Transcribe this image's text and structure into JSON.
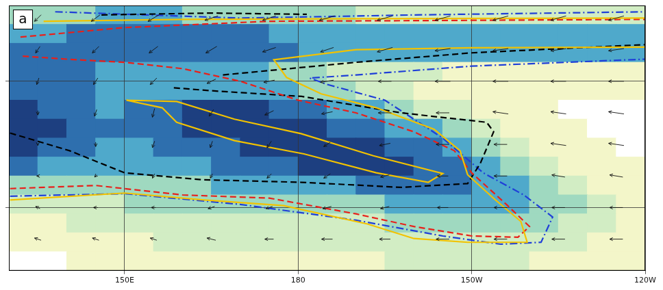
{
  "chart_data": {
    "type": "map",
    "panel": "a",
    "xlim": [
      130,
      240
    ],
    "xticks": [
      {
        "value": 150,
        "label": "150E"
      },
      180,
      {
        "value": 210,
        "label": "150W"
      },
      {
        "value": 240,
        "label": "120W"
      }
    ],
    "ylim": [
      -30,
      12
    ],
    "yticks": [
      -20,
      0
    ],
    "tick_labels": "x",
    "grid": true,
    "cells": {
      "lon": [
        132.5,
        137.5,
        142.5,
        147.5,
        152.5,
        157.5,
        162.5,
        167.5,
        172.5,
        177.5,
        182.5,
        187.5,
        192.5,
        197.5,
        202.5,
        207.5,
        212.5,
        217.5,
        222.5,
        227.5,
        232.5,
        237.5
      ],
      "lat": [
        10.5,
        7.5,
        4.5,
        1.5,
        -1.5,
        -4.5,
        -7.5,
        -10.5,
        -13.5,
        -16.5,
        -19.5,
        -22.5,
        -25.5,
        -28.5
      ],
      "values": [
        [
          7,
          7,
          7,
          8,
          8,
          8,
          7,
          7,
          7,
          6,
          6,
          6,
          5,
          5,
          5,
          5,
          4,
          4,
          4,
          4,
          4,
          4
        ],
        [
          9,
          9,
          10,
          10,
          10,
          10,
          10,
          10,
          10,
          9,
          9,
          9,
          9,
          8,
          8,
          8,
          8,
          8,
          8,
          8,
          8,
          8
        ],
        [
          10,
          10,
          10,
          10,
          10,
          11,
          11,
          10,
          10,
          10,
          9,
          9,
          9,
          9,
          9,
          9,
          9,
          9,
          9,
          9,
          9,
          8
        ],
        [
          10,
          11,
          10,
          9,
          9,
          9,
          9,
          8,
          8,
          7,
          6,
          5,
          5,
          4,
          4,
          3,
          3,
          3,
          3,
          3,
          3,
          3
        ],
        [
          11,
          11,
          10,
          9,
          9,
          9,
          9,
          9,
          8,
          8,
          7,
          6,
          5,
          4,
          3,
          2,
          2,
          2,
          2,
          2,
          2,
          2
        ],
        [
          12,
          11,
          10,
          9,
          10,
          11,
          12,
          12,
          12,
          11,
          10,
          9,
          8,
          7,
          5,
          4,
          3,
          2,
          2,
          1,
          1,
          1
        ],
        [
          13,
          12,
          10,
          10,
          10,
          11,
          12,
          13,
          13,
          13,
          12,
          11,
          10,
          9,
          8,
          6,
          5,
          3,
          2,
          2,
          1,
          1
        ],
        [
          12,
          11,
          10,
          9,
          9,
          10,
          11,
          11,
          12,
          13,
          13,
          13,
          12,
          11,
          10,
          9,
          7,
          5,
          3,
          2,
          2,
          1
        ],
        [
          10,
          9,
          8,
          8,
          8,
          8,
          9,
          10,
          10,
          11,
          12,
          12,
          12,
          12,
          11,
          10,
          9,
          7,
          5,
          3,
          2,
          2
        ],
        [
          7,
          7,
          7,
          7,
          7,
          7,
          7,
          8,
          8,
          8,
          9,
          9,
          10,
          10,
          10,
          10,
          9,
          8,
          7,
          5,
          3,
          2
        ],
        [
          4,
          5,
          5,
          5,
          6,
          6,
          6,
          6,
          6,
          6,
          6,
          7,
          7,
          8,
          8,
          9,
          8,
          8,
          7,
          6,
          4,
          3
        ],
        [
          3,
          3,
          4,
          4,
          4,
          5,
          5,
          5,
          5,
          5,
          5,
          5,
          5,
          6,
          6,
          7,
          7,
          6,
          6,
          5,
          4,
          3
        ],
        [
          2,
          2,
          3,
          3,
          3,
          4,
          4,
          4,
          4,
          4,
          4,
          4,
          4,
          4,
          5,
          5,
          5,
          5,
          4,
          4,
          3,
          3
        ],
        [
          1,
          1,
          2,
          2,
          3,
          3,
          3,
          3,
          3,
          3,
          3,
          3,
          3,
          4,
          4,
          4,
          4,
          4,
          3,
          3,
          3,
          2
        ]
      ]
    },
    "cell_levels": [
      2,
      4,
      6,
      8,
      10,
      12
    ],
    "cell_colors": [
      "#ffffff",
      "#f3f6c9",
      "#d2edc4",
      "#9fd9c0",
      "#4fa9cb",
      "#2e6fae",
      "#1d3f80"
    ],
    "contours": [
      {
        "color": "#f2c200",
        "line_style": "solid",
        "points": [
          [
            150.3,
            -3.0
          ],
          [
            159,
            -3.2
          ],
          [
            169,
            -6.0
          ],
          [
            180.5,
            -8.3
          ],
          [
            193,
            -11.8
          ],
          [
            205,
            -14.6
          ],
          [
            202.5,
            -16.0
          ],
          [
            193.5,
            -14.5
          ],
          [
            181,
            -11.5
          ],
          [
            169,
            -9.4
          ],
          [
            159,
            -6.5
          ],
          [
            156.5,
            -4.2
          ],
          [
            150.3,
            -3.0
          ]
        ]
      },
      {
        "color": "#f2c200",
        "line_style": "solid",
        "points": [
          [
            130.2,
            -18.8
          ],
          [
            150,
            -17.7
          ],
          [
            163.8,
            -18.8
          ],
          [
            177.5,
            -19.7
          ],
          [
            192,
            -22.6
          ],
          [
            200,
            -24.9
          ],
          [
            209.3,
            -25.5
          ],
          [
            219.6,
            -25.5
          ],
          [
            218.5,
            -22.2
          ],
          [
            214,
            -18.7
          ],
          [
            209.3,
            -14.8
          ],
          [
            208,
            -11
          ],
          [
            203.5,
            -7.6
          ],
          [
            193.5,
            -4.2
          ],
          [
            184,
            -2
          ],
          [
            178,
            0.6
          ],
          [
            175.8,
            3.4
          ],
          [
            190,
            5
          ],
          [
            210,
            5.3
          ],
          [
            240,
            5.4
          ]
        ]
      },
      {
        "color": "#f2c200",
        "line_style": "solid",
        "points": [
          [
            136,
            9.5
          ],
          [
            160,
            9.8
          ],
          [
            190,
            9.9
          ],
          [
            240,
            10
          ]
        ]
      },
      {
        "color": "#e8201a",
        "line_style": "dashed",
        "points": [
          [
            130.2,
            -17
          ],
          [
            145,
            -16.5
          ],
          [
            160,
            -18
          ],
          [
            175,
            -18.5
          ],
          [
            190,
            -21
          ],
          [
            200,
            -23
          ],
          [
            210,
            -24.5
          ],
          [
            218,
            -24.7
          ],
          [
            220,
            -23
          ],
          [
            216,
            -19.5
          ],
          [
            213,
            -17
          ],
          [
            210,
            -14.5
          ],
          [
            207,
            -11
          ],
          [
            200,
            -8
          ],
          [
            190,
            -5
          ],
          [
            180,
            -3
          ],
          [
            170,
            0
          ],
          [
            160,
            2
          ],
          [
            150,
            3
          ],
          [
            140,
            3.5
          ],
          [
            132,
            4
          ]
        ]
      },
      {
        "color": "#e8201a",
        "line_style": "dashed",
        "points": [
          [
            132,
            7
          ],
          [
            150,
            8.5
          ],
          [
            175,
            9.5
          ],
          [
            200,
            9.6
          ],
          [
            240,
            9.8
          ]
        ]
      },
      {
        "color": "#000000",
        "line_style": "dashed",
        "points": [
          [
            130.2,
            -8.2
          ],
          [
            140.5,
            -11
          ],
          [
            150,
            -14.5
          ],
          [
            163.5,
            -15.6
          ],
          [
            180.6,
            -16
          ],
          [
            197.8,
            -16.8
          ],
          [
            209.3,
            -16.2
          ],
          [
            211.5,
            -13
          ],
          [
            213.8,
            -8
          ],
          [
            212.6,
            -6.5
          ],
          [
            197.8,
            -5
          ],
          [
            180.6,
            -2.4
          ],
          [
            165,
            -1.5
          ],
          [
            158,
            -1
          ]
        ]
      },
      {
        "color": "#000000",
        "line_style": "dashed",
        "points": [
          [
            146,
            10.5
          ],
          [
            165,
            10.8
          ],
          [
            181.5,
            10.6
          ]
        ]
      },
      {
        "color": "#000000",
        "line_style": "dashed",
        "points": [
          [
            167,
            1
          ],
          [
            190,
            3
          ],
          [
            210,
            4.5
          ],
          [
            240,
            5.8
          ]
        ]
      },
      {
        "color": "#1f3fd8",
        "line_style": "dashdot",
        "points": [
          [
            130.2,
            -18.2
          ],
          [
            150,
            -17.8
          ],
          [
            170,
            -19.5
          ],
          [
            190,
            -22
          ],
          [
            205,
            -24.5
          ],
          [
            215,
            -25.8
          ],
          [
            222,
            -25.5
          ],
          [
            224,
            -21.5
          ],
          [
            219,
            -18
          ],
          [
            212,
            -14.5
          ],
          [
            205,
            -9
          ],
          [
            195,
            -3
          ],
          [
            185,
            -0.5
          ],
          [
            182,
            0.5
          ],
          [
            190,
            1
          ],
          [
            210,
            2.4
          ],
          [
            240,
            3.5
          ]
        ]
      },
      {
        "color": "#1f3fd8",
        "line_style": "dashdot",
        "points": [
          [
            138,
            11
          ],
          [
            170,
            10
          ],
          [
            200,
            10.5
          ],
          [
            240,
            11
          ]
        ]
      }
    ],
    "vectors": {
      "lon": [
        135,
        145,
        155,
        165,
        175,
        185,
        195,
        205,
        215,
        225,
        235
      ],
      "lat": [
        10,
        5,
        0,
        -5,
        -10,
        -15,
        -20,
        -25
      ],
      "u": [
        [
          -3,
          -4,
          -5,
          -6,
          -6,
          -7,
          -7,
          -7,
          -7,
          -7,
          -7
        ],
        [
          -2,
          -3,
          -4,
          -5,
          -6,
          -6,
          -7,
          -7,
          -7,
          -7,
          -7
        ],
        [
          -1,
          -2,
          -3,
          -4,
          -5,
          -6,
          -6,
          -7,
          -7,
          -7,
          -7
        ],
        [
          0,
          -1,
          -1,
          -2,
          -4,
          -5,
          -6,
          -6,
          -7,
          -7,
          -7
        ],
        [
          0,
          0,
          -1,
          -1,
          -2,
          -3,
          -5,
          -6,
          -6,
          -7,
          -7
        ],
        [
          -1,
          -1,
          -1,
          -1,
          -2,
          -3,
          -4,
          -5,
          -6,
          -6,
          -6
        ],
        [
          -2,
          -2,
          -2,
          -3,
          -3,
          -4,
          -4,
          -5,
          -6,
          -6,
          -6
        ],
        [
          -3,
          -3,
          -3,
          -4,
          -4,
          -5,
          -5,
          -6,
          -6,
          -6,
          -6
        ]
      ],
      "v": [
        [
          -3,
          -3,
          -3,
          -2,
          -2,
          -2,
          -2,
          -2,
          -2,
          -2,
          -2
        ],
        [
          -3,
          -3,
          -3,
          -3,
          -2,
          -2,
          -2,
          -1,
          -1,
          -1,
          -1
        ],
        [
          -3,
          -3,
          -3,
          -2,
          -1,
          -1,
          0,
          0,
          0,
          0,
          0
        ],
        [
          -2,
          -3,
          -4,
          -3,
          -2,
          -1,
          0,
          0,
          1,
          1,
          1
        ],
        [
          -1,
          -2,
          -3,
          -3,
          -3,
          -2,
          -1,
          0,
          0,
          1,
          1
        ],
        [
          0,
          -1,
          -2,
          -2,
          -2,
          -2,
          -1,
          0,
          0,
          1,
          1
        ],
        [
          1,
          0,
          0,
          -1,
          -1,
          -1,
          -1,
          0,
          0,
          0,
          0
        ],
        [
          1,
          1,
          1,
          1,
          0,
          0,
          0,
          0,
          0,
          0,
          0
        ]
      ]
    }
  }
}
